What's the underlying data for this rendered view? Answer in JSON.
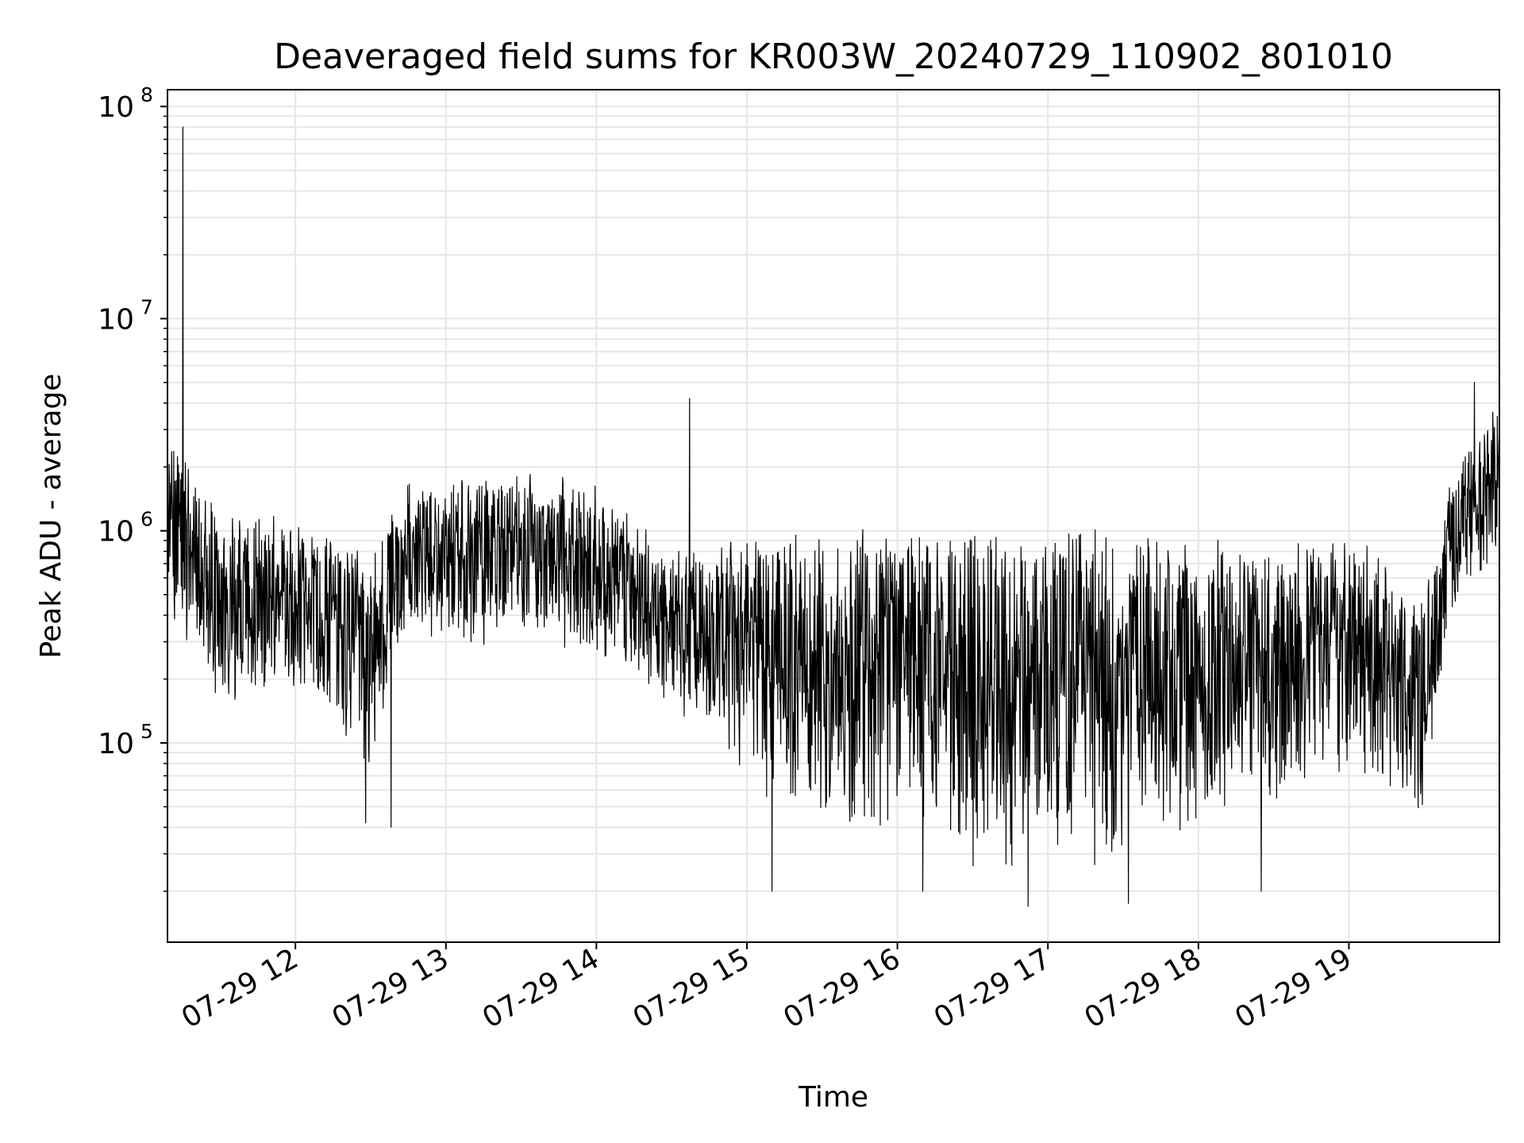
{
  "chart_data": {
    "type": "line",
    "title": "Deaveraged field sums for KR003W_20240729_110902_801010",
    "xlabel": "Time",
    "ylabel": "Peak ADU - average",
    "yscale": "log",
    "ylim": [
      11500,
      120000000
    ],
    "xlim": [
      "2024-07-29 11:09",
      "2024-07-29 20:00"
    ],
    "grid": true,
    "x_tick_labels": [
      "07-29 12",
      "07-29 13",
      "07-29 14",
      "07-29 15",
      "07-29 16",
      "07-29 17",
      "07-29 18",
      "07-29 19"
    ],
    "y_tick_labels": [
      {
        "base": "10",
        "exp": "5",
        "value": 100000
      },
      {
        "base": "10",
        "exp": "6",
        "value": 1000000
      },
      {
        "base": "10",
        "exp": "7",
        "value": 10000000
      },
      {
        "base": "10",
        "exp": "8",
        "value": 100000000
      }
    ],
    "line_color": "#000000",
    "grid_color": "#e6e6e6",
    "series": [
      {
        "trend": [
          {
            "x": "2024-07-29 11:09",
            "low": 500000,
            "high": 3000000
          },
          {
            "x": "2024-07-29 11:30",
            "low": 150000,
            "high": 1000000
          },
          {
            "x": "2024-07-29 12:00",
            "low": 200000,
            "high": 1000000
          },
          {
            "x": "2024-07-29 12:30",
            "low": 80000,
            "high": 700000
          },
          {
            "x": "2024-07-29 12:45",
            "low": 400000,
            "high": 1500000
          },
          {
            "x": "2024-07-29 13:00",
            "low": 300000,
            "high": 1500000
          },
          {
            "x": "2024-07-29 13:30",
            "low": 350000,
            "high": 1600000
          },
          {
            "x": "2024-07-29 14:00",
            "low": 300000,
            "high": 1500000
          },
          {
            "x": "2024-07-29 14:30",
            "low": 150000,
            "high": 700000
          },
          {
            "x": "2024-07-29 15:00",
            "low": 80000,
            "high": 900000
          },
          {
            "x": "2024-07-29 15:30",
            "low": 35000,
            "high": 900000
          },
          {
            "x": "2024-07-29 16:00",
            "low": 35000,
            "high": 900000
          },
          {
            "x": "2024-07-29 16:30",
            "low": 30000,
            "high": 900000
          },
          {
            "x": "2024-07-29 17:00",
            "low": 30000,
            "high": 900000
          },
          {
            "x": "2024-07-29 17:30",
            "low": 30000,
            "high": 900000
          },
          {
            "x": "2024-07-29 18:00",
            "low": 40000,
            "high": 800000
          },
          {
            "x": "2024-07-29 18:30",
            "low": 60000,
            "high": 700000
          },
          {
            "x": "2024-07-29 19:00",
            "low": 80000,
            "high": 900000
          },
          {
            "x": "2024-07-29 19:30",
            "low": 50000,
            "high": 400000
          },
          {
            "x": "2024-07-29 19:40",
            "low": 400000,
            "high": 1500000
          },
          {
            "x": "2024-07-29 20:00",
            "low": 800000,
            "high": 3500000
          }
        ],
        "spikes": [
          {
            "x": "2024-07-29 11:15",
            "y": 80000000
          },
          {
            "x": "2024-07-29 14:37",
            "y": 4200000
          },
          {
            "x": "2024-07-29 19:50",
            "y": 5000000
          },
          {
            "x": "2024-07-29 16:52",
            "y": 17000
          },
          {
            "x": "2024-07-29 17:32",
            "y": 17500
          },
          {
            "x": "2024-07-29 15:10",
            "y": 20000
          },
          {
            "x": "2024-07-29 16:10",
            "y": 20000
          },
          {
            "x": "2024-07-29 18:25",
            "y": 20000
          },
          {
            "x": "2024-07-29 12:28",
            "y": 42000
          },
          {
            "x": "2024-07-29 12:38",
            "y": 40000
          }
        ]
      }
    ]
  }
}
